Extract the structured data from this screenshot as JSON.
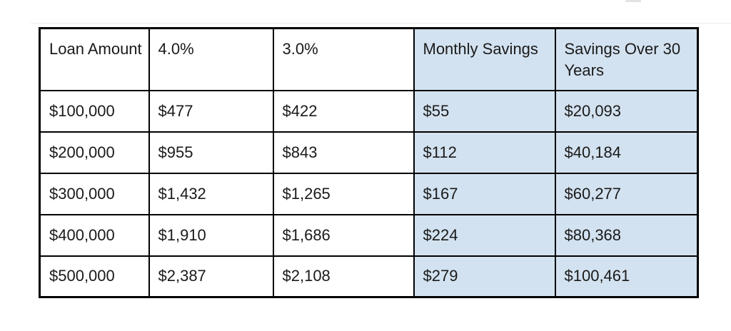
{
  "page": {
    "background": "#ffffff"
  },
  "chart_data": {
    "type": "table",
    "title": "",
    "columns": [
      "Loan Amount",
      "4.0%",
      "3.0%",
      "Monthly Savings",
      "Savings Over 30 Years"
    ],
    "rows": [
      [
        "$100,000",
        "$477",
        "$422",
        "$55",
        "$20,093"
      ],
      [
        "$200,000",
        "$955",
        "$843",
        "$112",
        "$40,184"
      ],
      [
        "$300,000",
        "$1,432",
        "$1,265",
        "$167",
        "$60,277"
      ],
      [
        "$400,000",
        "$1,910",
        "$1,686",
        "$224",
        "$80,368"
      ],
      [
        "$500,000",
        "$2,387",
        "$2,108",
        "$279",
        "$100,461"
      ]
    ],
    "highlighted_column_indexes": [
      3,
      4
    ],
    "colors": {
      "highlight_background": "#d3e2f0",
      "border": "#000000",
      "text": "#1a1a1a",
      "row_background": "#ffffff"
    }
  }
}
